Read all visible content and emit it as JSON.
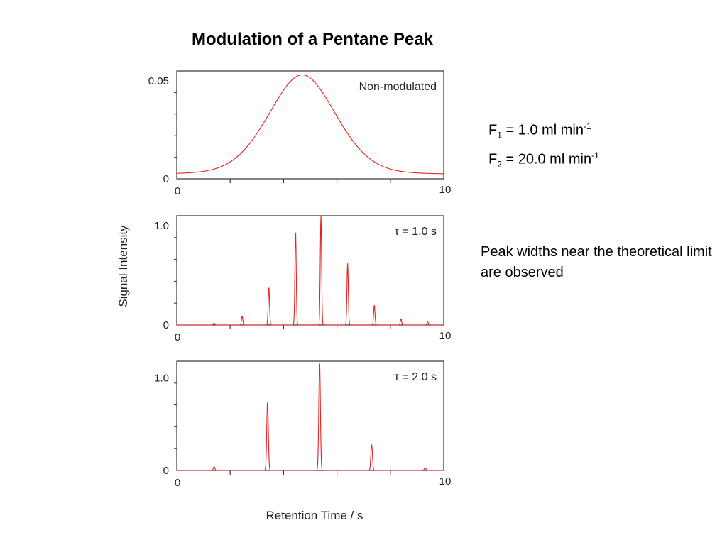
{
  "title": "Modulation of a Pentane Peak",
  "flow_rates": [
    {
      "symbol": "F",
      "subscript": "1",
      "text": " = 1.0 ml min",
      "superscript": "-1"
    },
    {
      "symbol": "F",
      "subscript": "2",
      "text": " = 20.0 ml min",
      "superscript": "-1"
    }
  ],
  "note": "Peak widths near the theoretical limit are observed",
  "colors": {
    "trace": "#e8201e",
    "frame": "#333333"
  },
  "chart_data": [
    {
      "type": "line",
      "label": "Non-modulated",
      "x_range": [
        0,
        10
      ],
      "x_tick_labels": [
        "0",
        "10"
      ],
      "y_range": [
        0,
        0.055
      ],
      "y_tick_labels": [
        {
          "value": 0,
          "text": "0"
        },
        {
          "value": 0.05,
          "text": "0.05"
        }
      ],
      "baseline": 0.002,
      "peaks": [
        {
          "x": 4.7,
          "height": 0.051,
          "width": 1.3
        }
      ]
    },
    {
      "type": "line",
      "label": "τ = 1.0 s",
      "x_range": [
        0,
        10
      ],
      "x_tick_labels": [
        "0",
        "10"
      ],
      "y_range": [
        0,
        1.1
      ],
      "y_tick_labels": [
        {
          "value": 0,
          "text": "0"
        },
        {
          "value": 1.0,
          "text": "1.0"
        }
      ],
      "baseline": 0.0,
      "peak_width": 0.025,
      "peaks": [
        {
          "x": 1.4,
          "height": 0.02
        },
        {
          "x": 2.45,
          "height": 0.09
        },
        {
          "x": 3.45,
          "height": 0.38
        },
        {
          "x": 4.45,
          "height": 0.95
        },
        {
          "x": 5.4,
          "height": 1.1
        },
        {
          "x": 6.4,
          "height": 0.62
        },
        {
          "x": 7.4,
          "height": 0.2
        },
        {
          "x": 8.4,
          "height": 0.06
        },
        {
          "x": 9.4,
          "height": 0.03
        }
      ]
    },
    {
      "type": "line",
      "label": "τ = 2.0 s",
      "x_range": [
        0,
        10
      ],
      "x_tick_labels": [
        "0",
        "10"
      ],
      "y_range": [
        0,
        1.18
      ],
      "y_tick_labels": [
        {
          "value": 0,
          "text": "0"
        },
        {
          "value": 1.0,
          "text": "1.0"
        }
      ],
      "baseline": 0.0,
      "peak_width": 0.03,
      "peaks": [
        {
          "x": 1.4,
          "height": 0.04
        },
        {
          "x": 3.4,
          "height": 0.74
        },
        {
          "x": 5.35,
          "height": 1.17
        },
        {
          "x": 7.3,
          "height": 0.28
        },
        {
          "x": 9.3,
          "height": 0.03
        }
      ]
    }
  ],
  "axes": {
    "ylabel": "Signal Intensity",
    "xlabel": "Retention Time / s"
  }
}
